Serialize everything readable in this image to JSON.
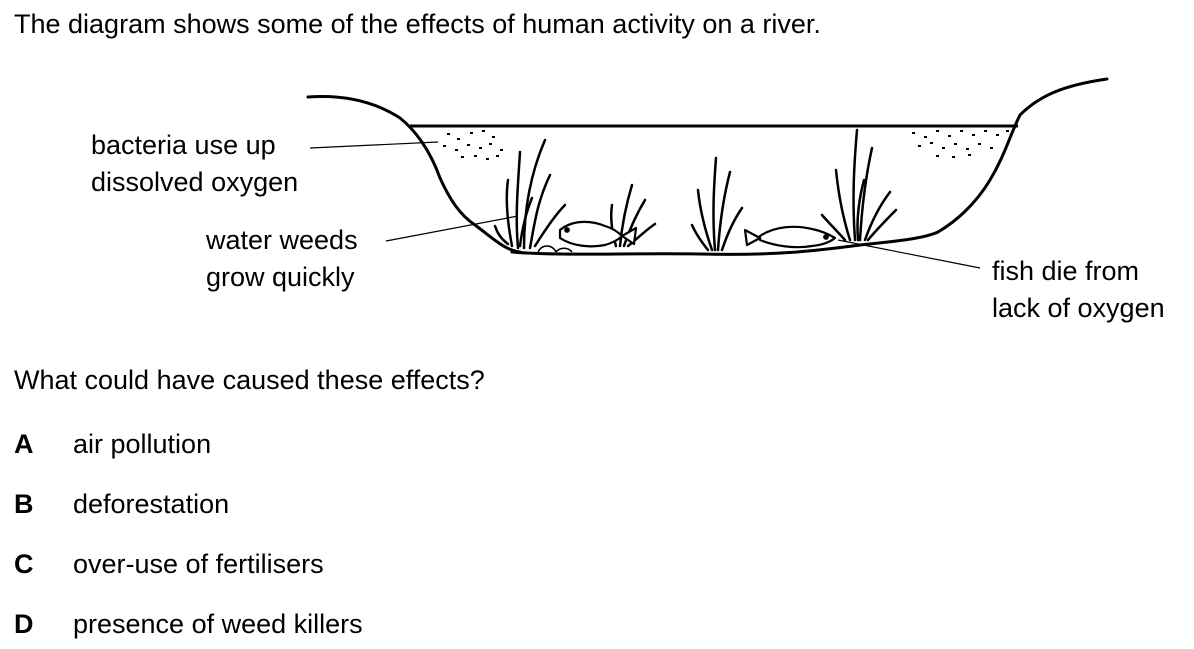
{
  "intro": "The diagram shows some of the effects of human activity on a river.",
  "diagram": {
    "labels": {
      "bacteria": [
        "bacteria use up",
        "dissolved oxygen"
      ],
      "weeds": [
        "water weeds",
        "grow quickly"
      ],
      "fish": [
        "fish die from",
        "lack of oxygen"
      ]
    }
  },
  "question": "What could have caused these effects?",
  "options": [
    {
      "letter": "A",
      "text": "air pollution"
    },
    {
      "letter": "B",
      "text": "deforestation"
    },
    {
      "letter": "C",
      "text": "over-use of fertilisers"
    },
    {
      "letter": "D",
      "text": "presence of weed killers"
    }
  ]
}
